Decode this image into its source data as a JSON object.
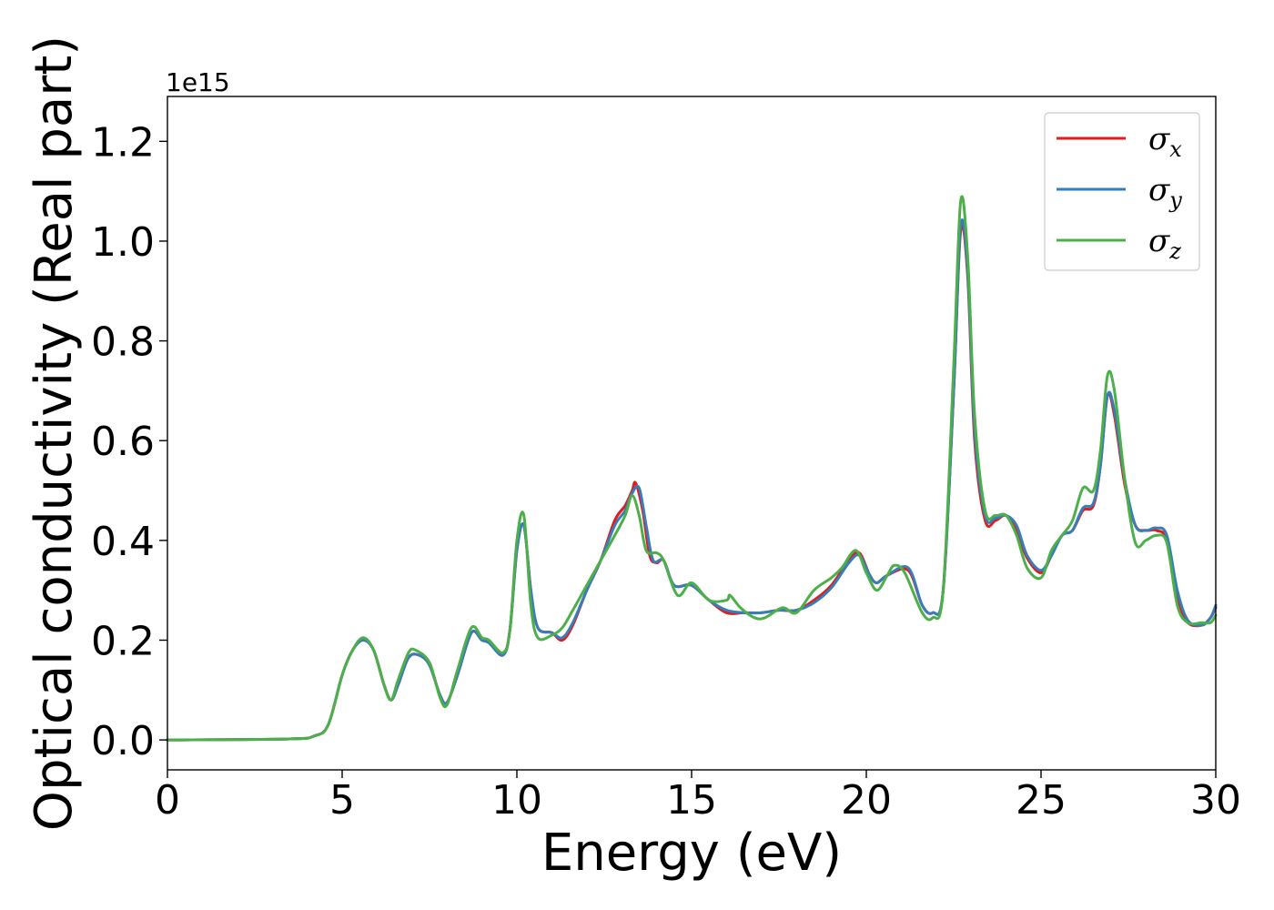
{
  "chart_data": {
    "type": "line",
    "title": "",
    "xlabel": "Energy (eV)",
    "ylabel": "Optical conductivity (Real part)",
    "y_offset_label": "1e15",
    "xlim": [
      0,
      30
    ],
    "ylim": [
      -0.06,
      1.29
    ],
    "x_ticks": [
      0,
      5,
      10,
      15,
      20,
      25,
      30
    ],
    "x_tick_labels": [
      "0",
      "5",
      "10",
      "15",
      "20",
      "25",
      "30"
    ],
    "y_ticks": [
      0.0,
      0.2,
      0.4,
      0.6,
      0.8,
      1.0,
      1.2
    ],
    "y_tick_labels": [
      "0.0",
      "0.2",
      "0.4",
      "0.6",
      "0.8",
      "1.0",
      "1.2"
    ],
    "grid": false,
    "legend_position": "top-right",
    "series": [
      {
        "name": "σx",
        "legend_symbol": "σ",
        "legend_sub": "x",
        "color": "#e41a1c",
        "points": [
          [
            0,
            0
          ],
          [
            3.5,
            0.002
          ],
          [
            4.2,
            0.008
          ],
          [
            4.6,
            0.03
          ],
          [
            5.0,
            0.13
          ],
          [
            5.3,
            0.18
          ],
          [
            5.6,
            0.2
          ],
          [
            5.9,
            0.18
          ],
          [
            6.2,
            0.11
          ],
          [
            6.4,
            0.08
          ],
          [
            6.6,
            0.11
          ],
          [
            6.9,
            0.165
          ],
          [
            7.2,
            0.17
          ],
          [
            7.5,
            0.15
          ],
          [
            7.8,
            0.09
          ],
          [
            8.0,
            0.075
          ],
          [
            8.3,
            0.13
          ],
          [
            8.7,
            0.215
          ],
          [
            9.0,
            0.2
          ],
          [
            9.2,
            0.195
          ],
          [
            9.6,
            0.17
          ],
          [
            9.8,
            0.22
          ],
          [
            10.0,
            0.38
          ],
          [
            10.2,
            0.43
          ],
          [
            10.4,
            0.3
          ],
          [
            10.6,
            0.225
          ],
          [
            11.0,
            0.215
          ],
          [
            11.3,
            0.2
          ],
          [
            11.6,
            0.23
          ],
          [
            12.0,
            0.3
          ],
          [
            12.4,
            0.36
          ],
          [
            12.8,
            0.44
          ],
          [
            13.1,
            0.47
          ],
          [
            13.3,
            0.5
          ],
          [
            13.4,
            0.515
          ],
          [
            13.6,
            0.46
          ],
          [
            13.8,
            0.37
          ],
          [
            14.0,
            0.355
          ],
          [
            14.2,
            0.36
          ],
          [
            14.5,
            0.31
          ],
          [
            15.0,
            0.31
          ],
          [
            15.5,
            0.28
          ],
          [
            16.0,
            0.255
          ],
          [
            16.5,
            0.255
          ],
          [
            17.0,
            0.255
          ],
          [
            17.5,
            0.26
          ],
          [
            18.0,
            0.26
          ],
          [
            18.5,
            0.28
          ],
          [
            19.0,
            0.31
          ],
          [
            19.5,
            0.36
          ],
          [
            19.8,
            0.375
          ],
          [
            20.1,
            0.33
          ],
          [
            20.3,
            0.315
          ],
          [
            20.6,
            0.33
          ],
          [
            21.2,
            0.34
          ],
          [
            21.6,
            0.27
          ],
          [
            21.9,
            0.255
          ],
          [
            22.2,
            0.3
          ],
          [
            22.5,
            0.7
          ],
          [
            22.7,
            1.02
          ],
          [
            22.9,
            0.93
          ],
          [
            23.1,
            0.6
          ],
          [
            23.4,
            0.44
          ],
          [
            23.7,
            0.44
          ],
          [
            24.0,
            0.45
          ],
          [
            24.3,
            0.42
          ],
          [
            24.6,
            0.365
          ],
          [
            25.0,
            0.335
          ],
          [
            25.3,
            0.37
          ],
          [
            25.6,
            0.41
          ],
          [
            25.9,
            0.42
          ],
          [
            26.2,
            0.46
          ],
          [
            26.5,
            0.47
          ],
          [
            26.7,
            0.55
          ],
          [
            26.9,
            0.69
          ],
          [
            27.1,
            0.65
          ],
          [
            27.4,
            0.51
          ],
          [
            27.7,
            0.43
          ],
          [
            28.0,
            0.42
          ],
          [
            28.3,
            0.42
          ],
          [
            28.6,
            0.4
          ],
          [
            28.9,
            0.28
          ],
          [
            29.2,
            0.235
          ],
          [
            29.6,
            0.23
          ],
          [
            29.85,
            0.245
          ],
          [
            30.0,
            0.265
          ]
        ]
      },
      {
        "name": "σy",
        "legend_symbol": "σ",
        "legend_sub": "y",
        "color": "#377eb8",
        "points": [
          [
            0,
            0
          ],
          [
            3.5,
            0.002
          ],
          [
            4.2,
            0.008
          ],
          [
            4.6,
            0.03
          ],
          [
            5.0,
            0.13
          ],
          [
            5.3,
            0.18
          ],
          [
            5.6,
            0.2
          ],
          [
            5.9,
            0.18
          ],
          [
            6.2,
            0.11
          ],
          [
            6.4,
            0.08
          ],
          [
            6.6,
            0.11
          ],
          [
            6.9,
            0.165
          ],
          [
            7.2,
            0.17
          ],
          [
            7.5,
            0.15
          ],
          [
            7.8,
            0.09
          ],
          [
            8.0,
            0.075
          ],
          [
            8.3,
            0.13
          ],
          [
            8.7,
            0.215
          ],
          [
            9.0,
            0.2
          ],
          [
            9.2,
            0.195
          ],
          [
            9.6,
            0.17
          ],
          [
            9.8,
            0.22
          ],
          [
            10.0,
            0.38
          ],
          [
            10.2,
            0.43
          ],
          [
            10.4,
            0.3
          ],
          [
            10.6,
            0.225
          ],
          [
            11.0,
            0.215
          ],
          [
            11.3,
            0.205
          ],
          [
            11.6,
            0.235
          ],
          [
            12.0,
            0.3
          ],
          [
            12.4,
            0.36
          ],
          [
            12.8,
            0.43
          ],
          [
            13.1,
            0.46
          ],
          [
            13.3,
            0.495
          ],
          [
            13.5,
            0.505
          ],
          [
            13.7,
            0.43
          ],
          [
            13.9,
            0.36
          ],
          [
            14.2,
            0.36
          ],
          [
            14.5,
            0.31
          ],
          [
            15.0,
            0.31
          ],
          [
            15.5,
            0.28
          ],
          [
            16.0,
            0.26
          ],
          [
            16.5,
            0.255
          ],
          [
            17.0,
            0.255
          ],
          [
            17.5,
            0.26
          ],
          [
            18.0,
            0.26
          ],
          [
            18.5,
            0.275
          ],
          [
            19.0,
            0.305
          ],
          [
            19.5,
            0.355
          ],
          [
            19.8,
            0.37
          ],
          [
            20.1,
            0.33
          ],
          [
            20.3,
            0.315
          ],
          [
            20.6,
            0.33
          ],
          [
            21.2,
            0.345
          ],
          [
            21.6,
            0.27
          ],
          [
            21.9,
            0.255
          ],
          [
            22.2,
            0.3
          ],
          [
            22.5,
            0.7
          ],
          [
            22.7,
            1.03
          ],
          [
            22.9,
            0.94
          ],
          [
            23.1,
            0.62
          ],
          [
            23.4,
            0.45
          ],
          [
            23.7,
            0.445
          ],
          [
            24.0,
            0.45
          ],
          [
            24.3,
            0.43
          ],
          [
            24.6,
            0.37
          ],
          [
            25.0,
            0.34
          ],
          [
            25.3,
            0.37
          ],
          [
            25.6,
            0.41
          ],
          [
            25.9,
            0.42
          ],
          [
            26.2,
            0.465
          ],
          [
            26.5,
            0.475
          ],
          [
            26.7,
            0.55
          ],
          [
            26.9,
            0.69
          ],
          [
            27.1,
            0.66
          ],
          [
            27.4,
            0.52
          ],
          [
            27.7,
            0.43
          ],
          [
            28.0,
            0.42
          ],
          [
            28.3,
            0.425
          ],
          [
            28.6,
            0.41
          ],
          [
            28.9,
            0.3
          ],
          [
            29.2,
            0.24
          ],
          [
            29.6,
            0.23
          ],
          [
            29.85,
            0.245
          ],
          [
            30.0,
            0.27
          ]
        ]
      },
      {
        "name": "σz",
        "legend_symbol": "σ",
        "legend_sub": "z",
        "color": "#4daf4a",
        "points": [
          [
            0,
            0
          ],
          [
            3.5,
            0.002
          ],
          [
            4.2,
            0.008
          ],
          [
            4.6,
            0.03
          ],
          [
            5.0,
            0.13
          ],
          [
            5.3,
            0.18
          ],
          [
            5.6,
            0.205
          ],
          [
            5.9,
            0.18
          ],
          [
            6.2,
            0.11
          ],
          [
            6.4,
            0.08
          ],
          [
            6.6,
            0.12
          ],
          [
            6.9,
            0.175
          ],
          [
            7.1,
            0.18
          ],
          [
            7.5,
            0.155
          ],
          [
            7.8,
            0.085
          ],
          [
            8.0,
            0.07
          ],
          [
            8.3,
            0.14
          ],
          [
            8.7,
            0.225
          ],
          [
            9.0,
            0.205
          ],
          [
            9.2,
            0.2
          ],
          [
            9.6,
            0.175
          ],
          [
            9.8,
            0.22
          ],
          [
            10.0,
            0.4
          ],
          [
            10.2,
            0.45
          ],
          [
            10.4,
            0.27
          ],
          [
            10.6,
            0.205
          ],
          [
            11.0,
            0.21
          ],
          [
            11.3,
            0.225
          ],
          [
            11.6,
            0.26
          ],
          [
            12.0,
            0.31
          ],
          [
            12.4,
            0.36
          ],
          [
            12.8,
            0.41
          ],
          [
            13.1,
            0.45
          ],
          [
            13.3,
            0.49
          ],
          [
            13.5,
            0.45
          ],
          [
            13.7,
            0.38
          ],
          [
            14.0,
            0.375
          ],
          [
            14.2,
            0.36
          ],
          [
            14.6,
            0.29
          ],
          [
            15.0,
            0.315
          ],
          [
            15.5,
            0.28
          ],
          [
            16.0,
            0.28
          ],
          [
            16.1,
            0.29
          ],
          [
            16.4,
            0.265
          ],
          [
            16.8,
            0.245
          ],
          [
            17.1,
            0.245
          ],
          [
            17.6,
            0.265
          ],
          [
            18.0,
            0.255
          ],
          [
            18.5,
            0.3
          ],
          [
            19.0,
            0.325
          ],
          [
            19.3,
            0.345
          ],
          [
            19.7,
            0.38
          ],
          [
            20.0,
            0.335
          ],
          [
            20.3,
            0.3
          ],
          [
            20.6,
            0.33
          ],
          [
            20.8,
            0.35
          ],
          [
            21.1,
            0.335
          ],
          [
            21.6,
            0.255
          ],
          [
            21.9,
            0.245
          ],
          [
            22.2,
            0.3
          ],
          [
            22.5,
            0.75
          ],
          [
            22.7,
            1.08
          ],
          [
            22.9,
            0.97
          ],
          [
            23.1,
            0.65
          ],
          [
            23.4,
            0.46
          ],
          [
            23.7,
            0.45
          ],
          [
            24.0,
            0.45
          ],
          [
            24.3,
            0.41
          ],
          [
            24.6,
            0.345
          ],
          [
            25.0,
            0.325
          ],
          [
            25.3,
            0.38
          ],
          [
            25.6,
            0.41
          ],
          [
            25.9,
            0.44
          ],
          [
            26.2,
            0.505
          ],
          [
            26.5,
            0.5
          ],
          [
            26.7,
            0.58
          ],
          [
            26.9,
            0.73
          ],
          [
            27.1,
            0.7
          ],
          [
            27.4,
            0.52
          ],
          [
            27.7,
            0.395
          ],
          [
            28.0,
            0.4
          ],
          [
            28.3,
            0.41
          ],
          [
            28.6,
            0.395
          ],
          [
            28.9,
            0.27
          ],
          [
            29.2,
            0.235
          ],
          [
            29.6,
            0.235
          ],
          [
            29.85,
            0.235
          ],
          [
            30.0,
            0.25
          ]
        ]
      }
    ]
  }
}
